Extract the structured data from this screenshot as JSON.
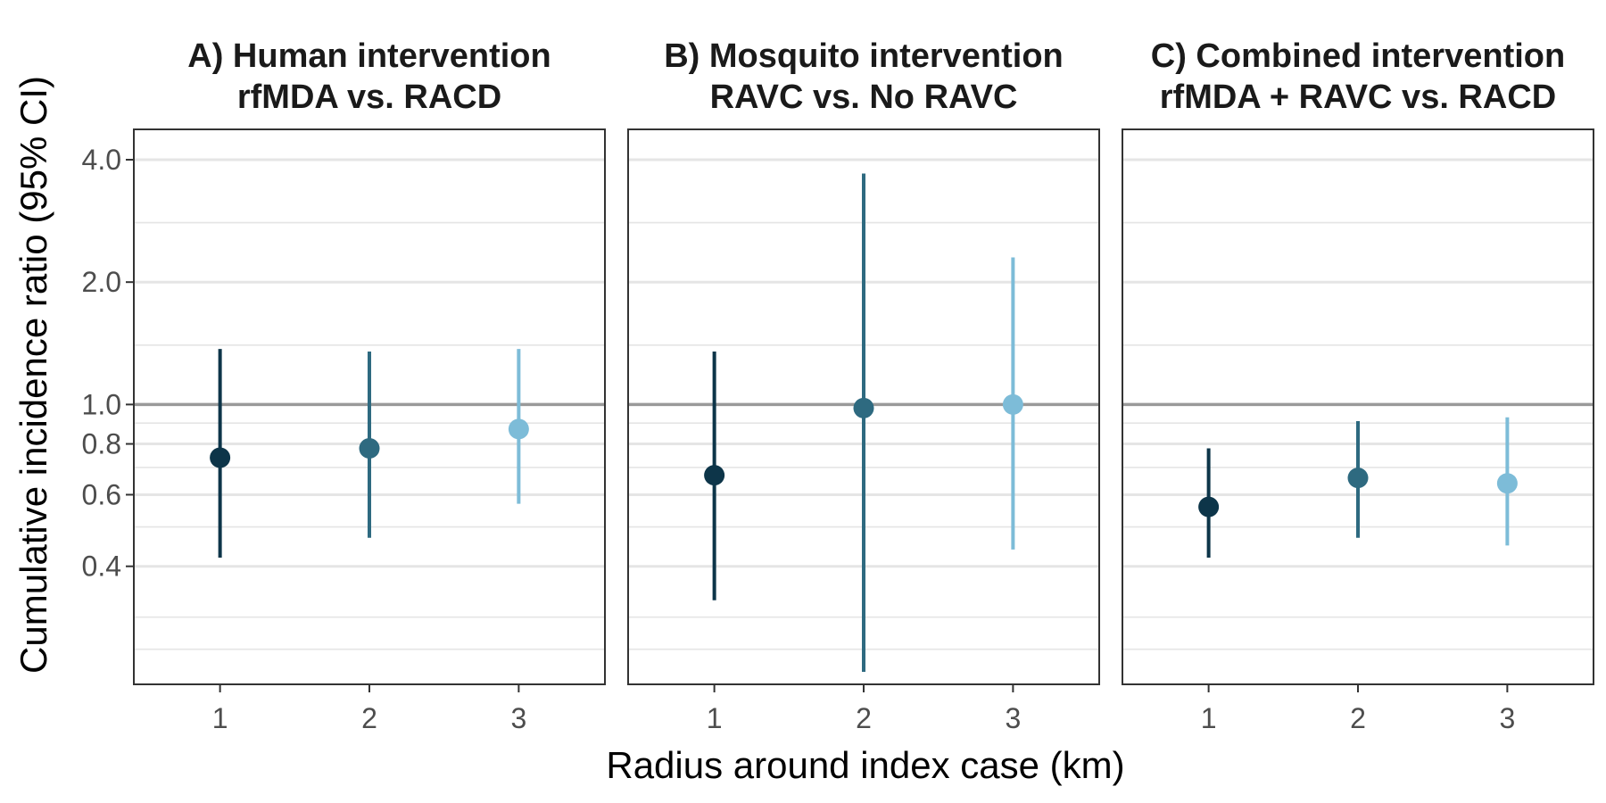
{
  "chart_data": {
    "type": "scatter",
    "subtype": "point-range (estimate with 95% CI error bars), faceted in 3 panels",
    "xlabel": "Radius around index case (km)",
    "ylabel": "Cumulative incidence ratio (95% CI)",
    "y_scale": "log",
    "ylim": [
      0.205,
      4.75
    ],
    "y_ticks": [
      0.4,
      0.6,
      0.8,
      1.0,
      2.0,
      4.0
    ],
    "y_tick_labels": [
      "0.4",
      "0.6",
      "0.8",
      "1.0",
      "2.0",
      "4.0"
    ],
    "y_minor_gridlines": [
      0.25,
      0.3,
      0.5,
      0.7,
      0.9,
      1.4,
      2.8
    ],
    "reference_line": 1.0,
    "grid": true,
    "x_categories": [
      "1",
      "2",
      "3"
    ],
    "colors": {
      "1": "#0d3549",
      "2": "#2e6a80",
      "3": "#7dbcd8",
      "reference": "#999999",
      "gridline": "#e5e5e5",
      "panel_border": "#333333"
    },
    "panels": [
      {
        "title_line1": "A) Human intervention",
        "title_line2": "rfMDA vs. RACD",
        "points": [
          {
            "x": "1",
            "estimate": 0.74,
            "lower": 0.42,
            "upper": 1.37
          },
          {
            "x": "2",
            "estimate": 0.78,
            "lower": 0.47,
            "upper": 1.35
          },
          {
            "x": "3",
            "estimate": 0.87,
            "lower": 0.57,
            "upper": 1.37
          }
        ]
      },
      {
        "title_line1": "B) Mosquito intervention",
        "title_line2": "RAVC vs. No RAVC",
        "points": [
          {
            "x": "1",
            "estimate": 0.67,
            "lower": 0.33,
            "upper": 1.35
          },
          {
            "x": "2",
            "estimate": 0.98,
            "lower": 0.22,
            "upper": 3.7
          },
          {
            "x": "3",
            "estimate": 1.0,
            "lower": 0.44,
            "upper": 2.3
          }
        ]
      },
      {
        "title_line1": "C) Combined intervention",
        "title_line2": "rfMDA + RAVC vs. RACD",
        "points": [
          {
            "x": "1",
            "estimate": 0.56,
            "lower": 0.42,
            "upper": 0.78
          },
          {
            "x": "2",
            "estimate": 0.66,
            "lower": 0.47,
            "upper": 0.91
          },
          {
            "x": "3",
            "estimate": 0.64,
            "lower": 0.45,
            "upper": 0.93
          }
        ]
      }
    ]
  }
}
